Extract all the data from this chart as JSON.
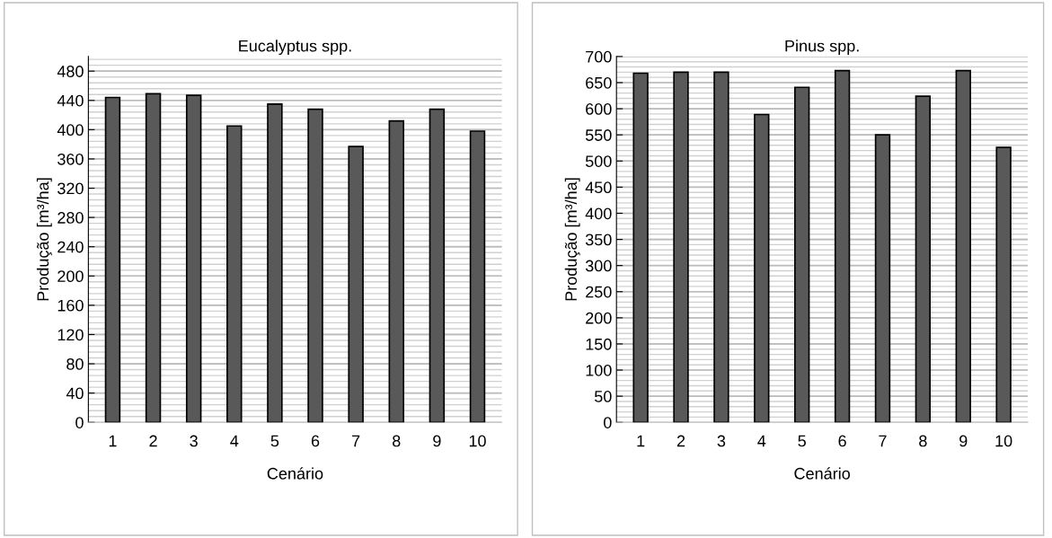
{
  "chart_data": [
    {
      "type": "bar",
      "title": "Eucalyptus spp.",
      "xlabel": "Cenário",
      "ylabel": "Produção [m³/ha]",
      "categories": [
        "1",
        "2",
        "3",
        "4",
        "5",
        "6",
        "7",
        "8",
        "9",
        "10"
      ],
      "series": [
        {
          "color": "#595959",
          "values": [
            444,
            449,
            447,
            405,
            435,
            428,
            377,
            412,
            428,
            398
          ]
        }
      ],
      "ylim": [
        0,
        500
      ],
      "yticks": [
        0,
        40,
        80,
        120,
        160,
        200,
        240,
        280,
        320,
        360,
        400,
        440,
        480
      ],
      "grid": "y"
    },
    {
      "type": "bar",
      "title": "Pinus spp.",
      "xlabel": "Cenário",
      "ylabel": "Produção [m³/ha]",
      "categories": [
        "1",
        "2",
        "3",
        "4",
        "5",
        "6",
        "7",
        "8",
        "9",
        "10"
      ],
      "series": [
        {
          "color": "#595959",
          "values": [
            668,
            670,
            670,
            589,
            641,
            673,
            550,
            624,
            673,
            526
          ]
        }
      ],
      "ylim": [
        0,
        700
      ],
      "yticks": [
        0,
        50,
        100,
        150,
        200,
        250,
        300,
        350,
        400,
        450,
        500,
        550,
        600,
        650,
        700
      ],
      "grid": "y"
    }
  ]
}
